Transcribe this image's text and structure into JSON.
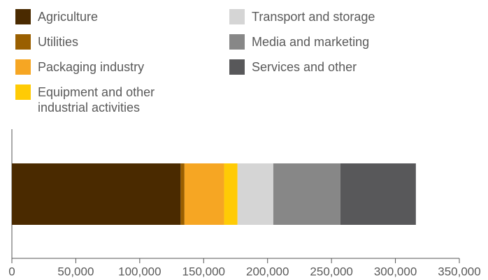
{
  "chart_data": {
    "type": "bar",
    "orientation": "horizontal",
    "stacked": true,
    "categories": [
      null
    ],
    "series": [
      {
        "name": "Agriculture",
        "color": "#4a2a00",
        "values": [
          132000
        ]
      },
      {
        "name": "Utilities",
        "color": "#9a5f00",
        "values": [
          3000
        ]
      },
      {
        "name": "Packaging industry",
        "color": "#f6a623",
        "values": [
          31000
        ]
      },
      {
        "name": "Equipment and other industrial activities",
        "color": "#ffcb05",
        "values": [
          10500
        ]
      },
      {
        "name": "Transport and storage",
        "color": "#d5d5d5",
        "values": [
          28000
        ]
      },
      {
        "name": "Media and marketing",
        "color": "#878787",
        "values": [
          52500
        ]
      },
      {
        "name": "Services and other",
        "color": "#58585a",
        "values": [
          59000
        ]
      }
    ],
    "xlim": [
      0,
      350000
    ],
    "xticks": [
      0,
      {
        "value": 50000,
        "label": "50,000"
      },
      {
        "value": 100000,
        "label": "100,000"
      },
      {
        "value": 150000,
        "label": "150,000"
      },
      {
        "value": 200000,
        "label": "200,000"
      },
      {
        "value": 250000,
        "label": "250,000"
      },
      {
        "value": 300000,
        "label": "300,000"
      },
      {
        "value": 350000,
        "label": "350,000"
      }
    ],
    "grid": false,
    "legend": "top"
  }
}
